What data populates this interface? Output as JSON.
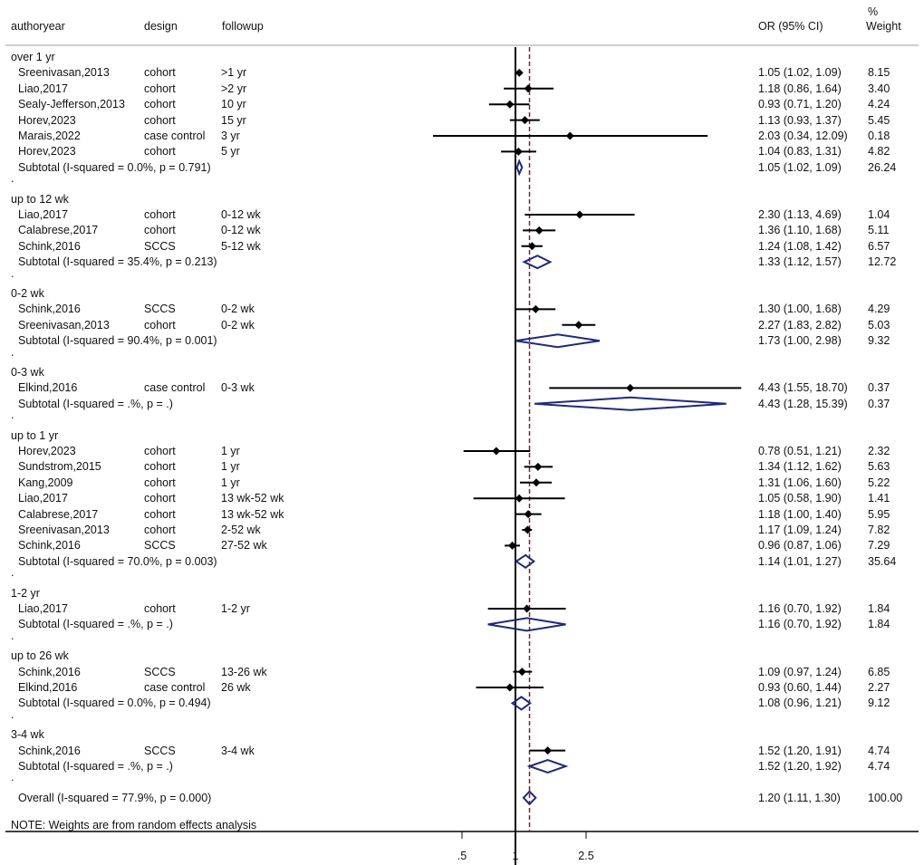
{
  "chart_data": {
    "type": "forest",
    "headers": {
      "authoryear": "authoryear",
      "design": "design",
      "followup": "followup",
      "or": "OR (95% CI)",
      "weight_pct": "%",
      "weight": "Weight"
    },
    "x_scale": "log",
    "null_value": 1,
    "overall_line_value": 1.2,
    "xticks": [
      {
        "label": ".5",
        "value": 0.5
      },
      {
        "label": "1",
        "value": 1
      },
      {
        "label": "2.5",
        "value": 2.5
      }
    ],
    "note": "NOTE: Weights are from random effects analysis",
    "rows": [
      {
        "kind": "group",
        "label": "over 1 yr"
      },
      {
        "kind": "study",
        "author": "Sreenivasan,2013",
        "design": "cohort",
        "followup": ">1 yr",
        "or": 1.05,
        "lo": 1.02,
        "hi": 1.09,
        "ci_text": "1.05 (1.02, 1.09)",
        "weight": "8.15"
      },
      {
        "kind": "study",
        "author": "Liao,2017",
        "design": "cohort",
        "followup": ">2 yr",
        "or": 1.18,
        "lo": 0.86,
        "hi": 1.64,
        "ci_text": "1.18 (0.86, 1.64)",
        "weight": "3.40"
      },
      {
        "kind": "study",
        "author": "Sealy-Jefferson,2013",
        "design": "cohort",
        "followup": "10 yr",
        "or": 0.93,
        "lo": 0.71,
        "hi": 1.2,
        "ci_text": "0.93 (0.71, 1.20)",
        "weight": "4.24"
      },
      {
        "kind": "study",
        "author": "Horev,2023",
        "design": "cohort",
        "followup": "15 yr",
        "or": 1.13,
        "lo": 0.93,
        "hi": 1.37,
        "ci_text": "1.13 (0.93, 1.37)",
        "weight": "5.45"
      },
      {
        "kind": "study",
        "author": "Marais,2022",
        "design": "case control",
        "followup": "3 yr",
        "or": 2.03,
        "lo": 0.34,
        "hi": 12.09,
        "ci_text": "2.03 (0.34, 12.09)",
        "weight": "0.18"
      },
      {
        "kind": "study",
        "author": "Horev,2023",
        "design": "cohort",
        "followup": "5 yr",
        "or": 1.04,
        "lo": 0.83,
        "hi": 1.31,
        "ci_text": "1.04 (0.83, 1.31)",
        "weight": "4.82"
      },
      {
        "kind": "subtotal",
        "label": "Subtotal  (I-squared = 0.0%, p = 0.791)",
        "or": 1.05,
        "lo": 1.02,
        "hi": 1.09,
        "ci_text": "1.05 (1.02, 1.09)",
        "weight": "26.24"
      },
      {
        "kind": "dot"
      },
      {
        "kind": "group",
        "label": "up to 12 wk"
      },
      {
        "kind": "study",
        "author": "Liao,2017",
        "design": "cohort",
        "followup": "0-12 wk",
        "or": 2.3,
        "lo": 1.13,
        "hi": 4.69,
        "ci_text": "2.30 (1.13, 4.69)",
        "weight": "1.04"
      },
      {
        "kind": "study",
        "author": "Calabrese,2017",
        "design": "cohort",
        "followup": "0-12 wk",
        "or": 1.36,
        "lo": 1.1,
        "hi": 1.68,
        "ci_text": "1.36 (1.10, 1.68)",
        "weight": "5.11"
      },
      {
        "kind": "study",
        "author": "Schink,2016",
        "design": "SCCS",
        "followup": "5-12 wk",
        "or": 1.24,
        "lo": 1.08,
        "hi": 1.42,
        "ci_text": "1.24 (1.08, 1.42)",
        "weight": "6.57"
      },
      {
        "kind": "subtotal",
        "label": "Subtotal  (I-squared = 35.4%, p = 0.213)",
        "or": 1.33,
        "lo": 1.12,
        "hi": 1.57,
        "ci_text": "1.33 (1.12, 1.57)",
        "weight": "12.72"
      },
      {
        "kind": "dot"
      },
      {
        "kind": "group",
        "label": "0-2 wk"
      },
      {
        "kind": "study",
        "author": "Schink,2016",
        "design": "SCCS",
        "followup": "0-2 wk",
        "or": 1.3,
        "lo": 1.0,
        "hi": 1.68,
        "ci_text": "1.30 (1.00, 1.68)",
        "weight": "4.29"
      },
      {
        "kind": "study",
        "author": "Sreenivasan,2013",
        "design": "cohort",
        "followup": "0-2 wk",
        "or": 2.27,
        "lo": 1.83,
        "hi": 2.82,
        "ci_text": "2.27 (1.83, 2.82)",
        "weight": "5.03"
      },
      {
        "kind": "subtotal",
        "label": "Subtotal  (I-squared = 90.4%, p = 0.001)",
        "or": 1.73,
        "lo": 1.0,
        "hi": 2.98,
        "ci_text": "1.73 (1.00, 2.98)",
        "weight": "9.32"
      },
      {
        "kind": "dot"
      },
      {
        "kind": "group",
        "label": "0-3 wk"
      },
      {
        "kind": "study",
        "author": "Elkind,2016",
        "design": "case control",
        "followup": "0-3 wk",
        "or": 4.43,
        "lo": 1.55,
        "hi": 18.7,
        "ci_text": "4.43 (1.55, 18.70)",
        "weight": "0.37"
      },
      {
        "kind": "subtotal",
        "label": "Subtotal  (I-squared = .%, p = .)",
        "or": 4.43,
        "lo": 1.28,
        "hi": 15.39,
        "ci_text": "4.43 (1.28, 15.39)",
        "weight": "0.37"
      },
      {
        "kind": "dot"
      },
      {
        "kind": "group",
        "label": "up to 1 yr"
      },
      {
        "kind": "study",
        "author": "Horev,2023",
        "design": "cohort",
        "followup": "1 yr",
        "or": 0.78,
        "lo": 0.51,
        "hi": 1.21,
        "ci_text": "0.78 (0.51, 1.21)",
        "weight": "2.32"
      },
      {
        "kind": "study",
        "author": "Sundstrom,2015",
        "design": "cohort",
        "followup": "1 yr",
        "or": 1.34,
        "lo": 1.12,
        "hi": 1.62,
        "ci_text": "1.34 (1.12, 1.62)",
        "weight": "5.63"
      },
      {
        "kind": "study",
        "author": "Kang,2009",
        "design": "cohort",
        "followup": "1 yr",
        "or": 1.31,
        "lo": 1.06,
        "hi": 1.6,
        "ci_text": "1.31 (1.06, 1.60)",
        "weight": "5.22"
      },
      {
        "kind": "study",
        "author": "Liao,2017",
        "design": "cohort",
        "followup": "13 wk-52 wk",
        "or": 1.05,
        "lo": 0.58,
        "hi": 1.9,
        "ci_text": "1.05 (0.58, 1.90)",
        "weight": "1.41"
      },
      {
        "kind": "study",
        "author": "Calabrese,2017",
        "design": "cohort",
        "followup": "13 wk-52 wk",
        "or": 1.18,
        "lo": 1.0,
        "hi": 1.4,
        "ci_text": "1.18 (1.00, 1.40)",
        "weight": "5.95"
      },
      {
        "kind": "study",
        "author": "Sreenivasan,2013",
        "design": "cohort",
        "followup": "2-52 wk",
        "or": 1.17,
        "lo": 1.09,
        "hi": 1.24,
        "ci_text": "1.17 (1.09, 1.24)",
        "weight": "7.82"
      },
      {
        "kind": "study",
        "author": "Schink,2016",
        "design": "SCCS",
        "followup": "27-52 wk",
        "or": 0.96,
        "lo": 0.87,
        "hi": 1.06,
        "ci_text": "0.96 (0.87, 1.06)",
        "weight": "7.29"
      },
      {
        "kind": "subtotal",
        "label": "Subtotal  (I-squared = 70.0%, p = 0.003)",
        "or": 1.14,
        "lo": 1.01,
        "hi": 1.27,
        "ci_text": "1.14 (1.01, 1.27)",
        "weight": "35.64"
      },
      {
        "kind": "dot"
      },
      {
        "kind": "group",
        "label": "1-2 yr"
      },
      {
        "kind": "study",
        "author": "Liao,2017",
        "design": "cohort",
        "followup": "1-2 yr",
        "or": 1.16,
        "lo": 0.7,
        "hi": 1.92,
        "ci_text": "1.16 (0.70, 1.92)",
        "weight": "1.84"
      },
      {
        "kind": "subtotal",
        "label": "Subtotal  (I-squared = .%, p = .)",
        "or": 1.16,
        "lo": 0.7,
        "hi": 1.92,
        "ci_text": "1.16 (0.70, 1.92)",
        "weight": "1.84"
      },
      {
        "kind": "dot"
      },
      {
        "kind": "group",
        "label": "up to 26 wk"
      },
      {
        "kind": "study",
        "author": "Schink,2016",
        "design": "SCCS",
        "followup": "13-26 wk",
        "or": 1.09,
        "lo": 0.97,
        "hi": 1.24,
        "ci_text": "1.09 (0.97, 1.24)",
        "weight": "6.85"
      },
      {
        "kind": "study",
        "author": "Elkind,2016",
        "design": "case control",
        "followup": "26 wk",
        "or": 0.93,
        "lo": 0.6,
        "hi": 1.44,
        "ci_text": "0.93 (0.60, 1.44)",
        "weight": "2.27"
      },
      {
        "kind": "subtotal",
        "label": "Subtotal  (I-squared = 0.0%, p = 0.494)",
        "or": 1.08,
        "lo": 0.96,
        "hi": 1.21,
        "ci_text": "1.08 (0.96, 1.21)",
        "weight": "9.12"
      },
      {
        "kind": "dot"
      },
      {
        "kind": "group",
        "label": "3-4 wk"
      },
      {
        "kind": "study",
        "author": "Schink,2016",
        "design": "SCCS",
        "followup": "3-4 wk",
        "or": 1.52,
        "lo": 1.2,
        "hi": 1.91,
        "ci_text": "1.52 (1.20, 1.91)",
        "weight": "4.74"
      },
      {
        "kind": "subtotal",
        "label": "Subtotal  (I-squared = .%, p = .)",
        "or": 1.52,
        "lo": 1.2,
        "hi": 1.92,
        "ci_text": "1.52 (1.20, 1.92)",
        "weight": "4.74"
      },
      {
        "kind": "dot"
      },
      {
        "kind": "overall",
        "label": "Overall  (I-squared = 77.9%, p = 0.000)",
        "or": 1.2,
        "lo": 1.11,
        "hi": 1.3,
        "ci_text": "1.20 (1.11, 1.30)",
        "weight": "100.00"
      }
    ],
    "colors": {
      "diamond": "#1f2a7a",
      "overall_line": "#8b1a2b",
      "marker": "#000000"
    }
  }
}
